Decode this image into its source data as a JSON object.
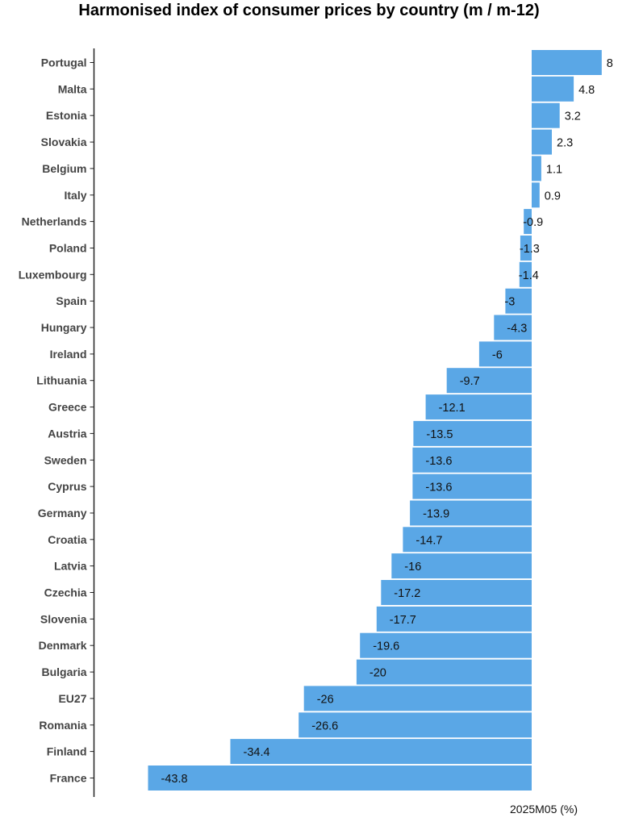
{
  "chart_data": {
    "type": "bar",
    "orientation": "horizontal",
    "title": "Harmonised index of consumer prices by country (m / m-12)",
    "xlabel": "2025M05 (%)",
    "ylabel": "",
    "categories": [
      "Portugal",
      "Malta",
      "Estonia",
      "Slovakia",
      "Belgium",
      "Italy",
      "Netherlands",
      "Poland",
      "Luxembourg",
      "Spain",
      "Hungary",
      "Ireland",
      "Lithuania",
      "Greece",
      "Austria",
      "Sweden",
      "Cyprus",
      "Germany",
      "Croatia",
      "Latvia",
      "Czechia",
      "Slovenia",
      "Denmark",
      "Bulgaria",
      "EU27",
      "Romania",
      "Finland",
      "France"
    ],
    "values": [
      8,
      4.8,
      3.2,
      2.3,
      1.1,
      0.9,
      -0.9,
      -1.3,
      -1.4,
      -3,
      -4.3,
      -6,
      -9.7,
      -12.1,
      -13.5,
      -13.6,
      -13.6,
      -13.9,
      -14.7,
      -16,
      -17.2,
      -17.7,
      -19.6,
      -20,
      -26,
      -26.6,
      -34.4,
      -43.8
    ],
    "value_labels": [
      "8",
      "4.8",
      "3.2",
      "2.3",
      "1.1",
      "0.9",
      "-0.9",
      "-1.3",
      "-1.4",
      "-3",
      "-4.3",
      "-6",
      "-9.7",
      "-12.1",
      "-13.5",
      "-13.6",
      "-13.6",
      "-13.9",
      "-14.7",
      "-16",
      "-17.2",
      "-17.7",
      "-19.6",
      "-20",
      "-26",
      "-26.6",
      "-34.4",
      "-43.8"
    ],
    "xlim": [
      -43.8,
      8
    ],
    "grid": false,
    "legend": "none",
    "bar_color": "#5aa7e6"
  }
}
